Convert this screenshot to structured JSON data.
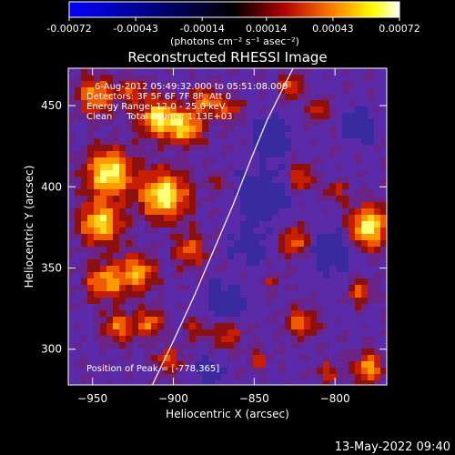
{
  "colorbar": {
    "ticks": [
      "-0.00072",
      "-0.00043",
      "-0.00014",
      "0.00014",
      "0.00043",
      "0.00072"
    ],
    "units_label": "(photons cm⁻² s⁻¹ asec⁻²)",
    "range": [
      -0.00072,
      0.00072
    ]
  },
  "chart_data": {
    "type": "heatmap",
    "title": "Reconstructed RHESSI Image",
    "xlabel": "Heliocentric X (arcsec)",
    "ylabel": "Heliocentric Y (arcsec)",
    "xlim": [
      -965,
      -768
    ],
    "ylim": [
      278,
      473
    ],
    "x_ticks": [
      -950,
      -900,
      -850,
      -800
    ],
    "y_ticks": [
      300,
      350,
      400,
      450
    ],
    "x_tick_labels": [
      "−950",
      "−900",
      "−850",
      "−800"
    ],
    "y_tick_labels": [
      "300",
      "350",
      "400",
      "450"
    ],
    "annotations": [
      "6-Aug-2012 05:49:32.000 to 05:51:08.000",
      "Detectors: 3F 5F 6F 7F 8F, Att 0",
      "Energy Range: 12.0 - 25.0 keV",
      "Clean     Total counts: 1.13E+03"
    ],
    "peak_label": "Position of Peak = [-778,365]",
    "peak": [
      -778,
      365
    ],
    "limb": {
      "x": [
        -913,
        -900,
        -887,
        -875,
        -863,
        -852,
        -842,
        -833,
        -826
      ],
      "y": [
        278,
        305,
        333,
        361,
        389,
        417,
        441,
        459,
        473
      ]
    }
  },
  "timestamp": "13-May-2022 09:40"
}
